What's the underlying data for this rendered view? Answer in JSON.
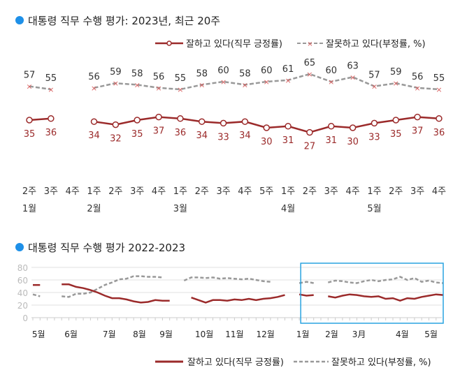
{
  "chart_data": [
    {
      "type": "line",
      "title": "대통령 직무 수행 평가: 2023년, 최근 20주",
      "legend_position": "top-right",
      "grid": false,
      "categories": [
        "2주",
        "3주",
        "4주",
        "1주",
        "2주",
        "3주",
        "4주",
        "1주",
        "2주",
        "3주",
        "4주",
        "5주",
        "1주",
        "2주",
        "3주",
        "4주",
        "1주",
        "2주",
        "3주",
        "4주"
      ],
      "months": [
        {
          "label": "1월",
          "index": 0
        },
        {
          "label": "2월",
          "index": 3
        },
        {
          "label": "3월",
          "index": 7
        },
        {
          "label": "4월",
          "index": 12
        },
        {
          "label": "5월",
          "index": 16
        }
      ],
      "series": [
        {
          "name": "잘하고 있다(직무 긍정률)",
          "color": "#9b2a2a",
          "values": [
            35,
            36,
            null,
            34,
            32,
            35,
            37,
            36,
            34,
            33,
            34,
            30,
            31,
            27,
            31,
            30,
            33,
            35,
            37,
            36
          ]
        },
        {
          "name": "잘못하고 있다(부정률, %)",
          "color": "#999999",
          "marker_color": "#d96060",
          "values": [
            57,
            55,
            null,
            56,
            59,
            58,
            56,
            55,
            58,
            60,
            58,
            60,
            61,
            65,
            60,
            63,
            57,
            59,
            56,
            55
          ]
        }
      ]
    },
    {
      "type": "line",
      "title": "대통령 직무 수행 평가 2022-2023",
      "legend_position": "bottom-right",
      "grid": true,
      "ylim": [
        0,
        80
      ],
      "yticks": [
        0,
        20,
        40,
        60,
        80
      ],
      "months": [
        {
          "label": "5월",
          "index": 0.8
        },
        {
          "label": "6월",
          "index": 5.3
        },
        {
          "label": "7월",
          "index": 10.6
        },
        {
          "label": "8월",
          "index": 14.8
        },
        {
          "label": "9월",
          "index": 18.5
        },
        {
          "label": "10월",
          "index": 23.8
        },
        {
          "label": "11월",
          "index": 28
        },
        {
          "label": "12월",
          "index": 32.3
        },
        {
          "label": "1월",
          "index": 37.5
        },
        {
          "label": "2월",
          "index": 41.5
        },
        {
          "label": "3月",
          "index": 45.3
        },
        {
          "label": "4월",
          "index": 51.3
        },
        {
          "label": "5월",
          "index": 55.3
        }
      ],
      "highlight_color": "#29a3e0",
      "series": [
        {
          "name": "잘하고 있다(직무 긍정률)",
          "color": "#9b2a2a",
          "values": [
            52,
            52,
            null,
            null,
            53,
            53,
            49,
            47,
            44,
            40,
            35,
            31,
            31,
            29,
            26,
            24,
            25,
            28,
            27,
            27,
            null,
            null,
            32,
            28,
            24,
            28,
            28,
            27,
            29,
            28,
            30,
            28,
            30,
            31,
            33,
            36,
            null,
            37,
            35,
            36,
            null,
            34,
            32,
            35,
            37,
            36,
            34,
            33,
            34,
            30,
            31,
            27,
            31,
            30,
            33,
            35,
            37,
            36
          ]
        },
        {
          "name": "잘못하고 있다(부정률, %)",
          "color": "#999999",
          "values": [
            37,
            34,
            null,
            null,
            34,
            33,
            38,
            38,
            40,
            46,
            52,
            56,
            61,
            62,
            66,
            66,
            65,
            65,
            64,
            null,
            null,
            59,
            64,
            64,
            63,
            64,
            62,
            63,
            62,
            61,
            62,
            60,
            58,
            57,
            null,
            null,
            null,
            55,
            57,
            55,
            null,
            56,
            59,
            58,
            56,
            55,
            58,
            60,
            58,
            60,
            61,
            65,
            60,
            63,
            57,
            59,
            56,
            55
          ]
        }
      ]
    }
  ]
}
